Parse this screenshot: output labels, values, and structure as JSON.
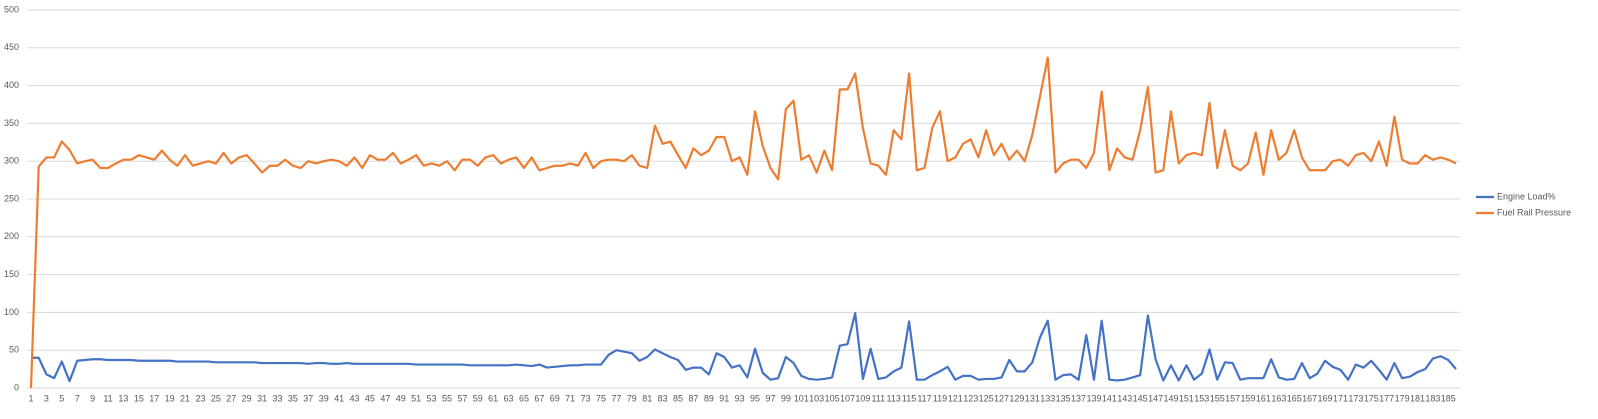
{
  "chart_data": {
    "type": "line",
    "categories": [
      1,
      null,
      3,
      null,
      5,
      null,
      7,
      null,
      9,
      null,
      11,
      null,
      13,
      null,
      15,
      null,
      17,
      null,
      19,
      null,
      21,
      null,
      23,
      null,
      25,
      null,
      27,
      null,
      29,
      null,
      31,
      null,
      33,
      null,
      35,
      null,
      37,
      null,
      39,
      null,
      41,
      null,
      43,
      null,
      45,
      null,
      47,
      null,
      49,
      null,
      51,
      null,
      53,
      null,
      55,
      null,
      57,
      null,
      59,
      null,
      61,
      null,
      63,
      null,
      65,
      null,
      67,
      null,
      69,
      null,
      71,
      null,
      73,
      null,
      75,
      null,
      77,
      null,
      79,
      null,
      81,
      null,
      83,
      null,
      85,
      null,
      87,
      null,
      89,
      null,
      91,
      null,
      93,
      null,
      95,
      null,
      97,
      null,
      99,
      null,
      101,
      null,
      103,
      null,
      105,
      null,
      107,
      null,
      109,
      null,
      111,
      null,
      113,
      null,
      115,
      null,
      117,
      null,
      119,
      null,
      121,
      null,
      123,
      null,
      125,
      null,
      127,
      null,
      129,
      null,
      131,
      null,
      133,
      null,
      135,
      null,
      137,
      null,
      139,
      null,
      141,
      null,
      143,
      null,
      145,
      null,
      147,
      null,
      149,
      null,
      151,
      null,
      153,
      null,
      155,
      null,
      157,
      null,
      159,
      null,
      161,
      null,
      163,
      null,
      165,
      null,
      167,
      null,
      169,
      null,
      171,
      null,
      173,
      null,
      175,
      null,
      177,
      null,
      179,
      null,
      181,
      null,
      183,
      null,
      185,
      null
    ],
    "series": [
      {
        "name": "Engine Load%",
        "color": "#4472c4",
        "values": [
          40,
          40,
          18,
          13,
          35,
          9,
          36,
          37,
          38,
          38,
          37,
          37,
          37,
          37,
          36,
          36,
          36,
          36,
          36,
          35,
          35,
          35,
          35,
          35,
          34,
          34,
          34,
          34,
          34,
          34,
          33,
          33,
          33,
          33,
          33,
          33,
          32,
          33,
          33,
          32,
          32,
          33,
          32,
          32,
          32,
          32,
          32,
          32,
          32,
          32,
          31,
          31,
          31,
          31,
          31,
          31,
          31,
          30,
          30,
          30,
          30,
          30,
          30,
          31,
          30,
          29,
          31,
          27,
          28,
          29,
          30,
          30,
          31,
          31,
          31,
          44,
          50,
          48,
          46,
          36,
          41,
          51,
          46,
          41,
          37,
          24,
          27,
          27,
          18,
          46,
          41,
          27,
          30,
          14,
          52,
          20,
          11,
          13,
          41,
          33,
          16,
          12,
          11,
          12,
          14,
          56,
          58,
          99,
          12,
          52,
          12,
          14,
          22,
          27,
          88,
          11,
          11,
          17,
          22,
          28,
          11,
          16,
          16,
          11,
          12,
          12,
          14,
          37,
          22,
          22,
          34,
          67,
          89,
          11,
          17,
          18,
          11,
          70,
          11,
          89,
          11,
          10,
          11,
          14,
          17,
          96,
          38,
          10,
          30,
          10,
          30,
          11,
          19,
          51,
          11,
          34,
          33,
          11,
          13,
          13,
          13,
          38,
          14,
          11,
          12,
          33,
          13,
          19,
          36,
          28,
          24,
          11,
          31,
          27,
          36,
          24,
          11,
          33,
          13,
          15,
          21,
          25,
          39,
          42,
          37,
          25
        ]
      },
      {
        "name": "Fuel Rail Pressure",
        "color": "#ed7d31",
        "values": [
          0,
          293,
          305,
          305,
          326,
          315,
          297,
          300,
          302,
          291,
          291,
          297,
          302,
          302,
          308,
          305,
          302,
          314,
          302,
          294,
          308,
          294,
          297,
          300,
          297,
          311,
          297,
          305,
          308,
          297,
          285,
          294,
          294,
          302,
          294,
          291,
          300,
          297,
          300,
          302,
          300,
          294,
          305,
          291,
          308,
          302,
          302,
          311,
          297,
          302,
          308,
          294,
          297,
          294,
          300,
          288,
          302,
          302,
          294,
          305,
          308,
          297,
          302,
          305,
          291,
          305,
          288,
          291,
          294,
          294,
          297,
          294,
          311,
          291,
          300,
          302,
          302,
          300,
          308,
          294,
          291,
          347,
          323,
          326,
          308,
          291,
          317,
          308,
          314,
          332,
          332,
          300,
          305,
          282,
          366,
          320,
          291,
          276,
          369,
          380,
          302,
          308,
          285,
          314,
          288,
          395,
          395,
          416,
          344,
          297,
          294,
          282,
          341,
          329,
          416,
          288,
          291,
          344,
          366,
          300,
          305,
          323,
          329,
          305,
          341,
          308,
          323,
          302,
          314,
          300,
          335,
          386,
          437,
          285,
          297,
          302,
          302,
          291,
          311,
          392,
          288,
          317,
          305,
          302,
          341,
          398,
          285,
          288,
          366,
          297,
          308,
          311,
          308,
          377,
          291,
          341,
          294,
          288,
          297,
          338,
          282,
          341,
          302,
          311,
          341,
          305,
          288,
          288,
          288,
          300,
          302,
          294,
          308,
          311,
          300,
          326,
          294,
          359,
          302,
          297,
          297,
          308,
          302,
          305,
          302,
          297
        ]
      }
    ],
    "ylim": [
      0,
      500
    ],
    "yticks": [
      0,
      50,
      100,
      150,
      200,
      250,
      300,
      350,
      400,
      450,
      500
    ],
    "grid": true,
    "legend": "right"
  }
}
